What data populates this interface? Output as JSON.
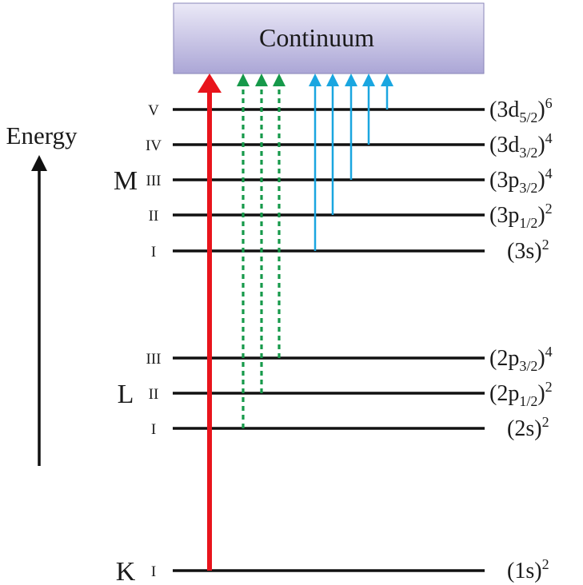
{
  "continuum_label": "Continuum",
  "energy_label": "Energy",
  "shells": [
    {
      "name": "M",
      "subshell_index": 2
    },
    {
      "name": "L",
      "subshell_index": 6
    },
    {
      "name": "K",
      "subshell_index": 8
    }
  ],
  "levels": [
    {
      "roman": "V",
      "orbital": "(3d",
      "sub": "5/2",
      "close": ")",
      "sup": "6"
    },
    {
      "roman": "IV",
      "orbital": "(3d",
      "sub": "3/2",
      "close": ")",
      "sup": "4"
    },
    {
      "roman": "III",
      "orbital": "(3p",
      "sub": "3/2",
      "close": ")",
      "sup": "4"
    },
    {
      "roman": "II",
      "orbital": "(3p",
      "sub": "1/2",
      "close": ")",
      "sup": "2"
    },
    {
      "roman": "I",
      "orbital": "(3s",
      "sub": "",
      "close": ")",
      "sup": "2"
    },
    {
      "roman": "III",
      "orbital": "(2p",
      "sub": "3/2",
      "close": ")",
      "sup": "4"
    },
    {
      "roman": "II",
      "orbital": "(2p",
      "sub": "1/2",
      "close": ")",
      "sup": "2"
    },
    {
      "roman": "I",
      "orbital": "(2s",
      "sub": "",
      "close": ")",
      "sup": "2"
    },
    {
      "roman": "I",
      "orbital": "(1s",
      "sub": "",
      "close": ")",
      "sup": "2"
    }
  ],
  "transitions": [
    {
      "from_level": 8,
      "style": "solid",
      "color": "#e8141c"
    },
    {
      "from_level": 7,
      "style": "dashed",
      "color": "#16994a"
    },
    {
      "from_level": 6,
      "style": "dashed",
      "color": "#16994a"
    },
    {
      "from_level": 5,
      "style": "dashed",
      "color": "#16994a"
    },
    {
      "from_level": 4,
      "style": "solid",
      "color": "#1aa6e0"
    },
    {
      "from_level": 3,
      "style": "solid",
      "color": "#1aa6e0"
    },
    {
      "from_level": 2,
      "style": "solid",
      "color": "#1aa6e0"
    },
    {
      "from_level": 1,
      "style": "solid",
      "color": "#1aa6e0"
    },
    {
      "from_level": 0,
      "style": "solid",
      "color": "#1aa6e0"
    }
  ],
  "colors": {
    "continuum_top": "#ebe9f7",
    "continuum_bottom": "#aba6d6",
    "level_line": "#111111",
    "energy_arrow": "#111111"
  }
}
